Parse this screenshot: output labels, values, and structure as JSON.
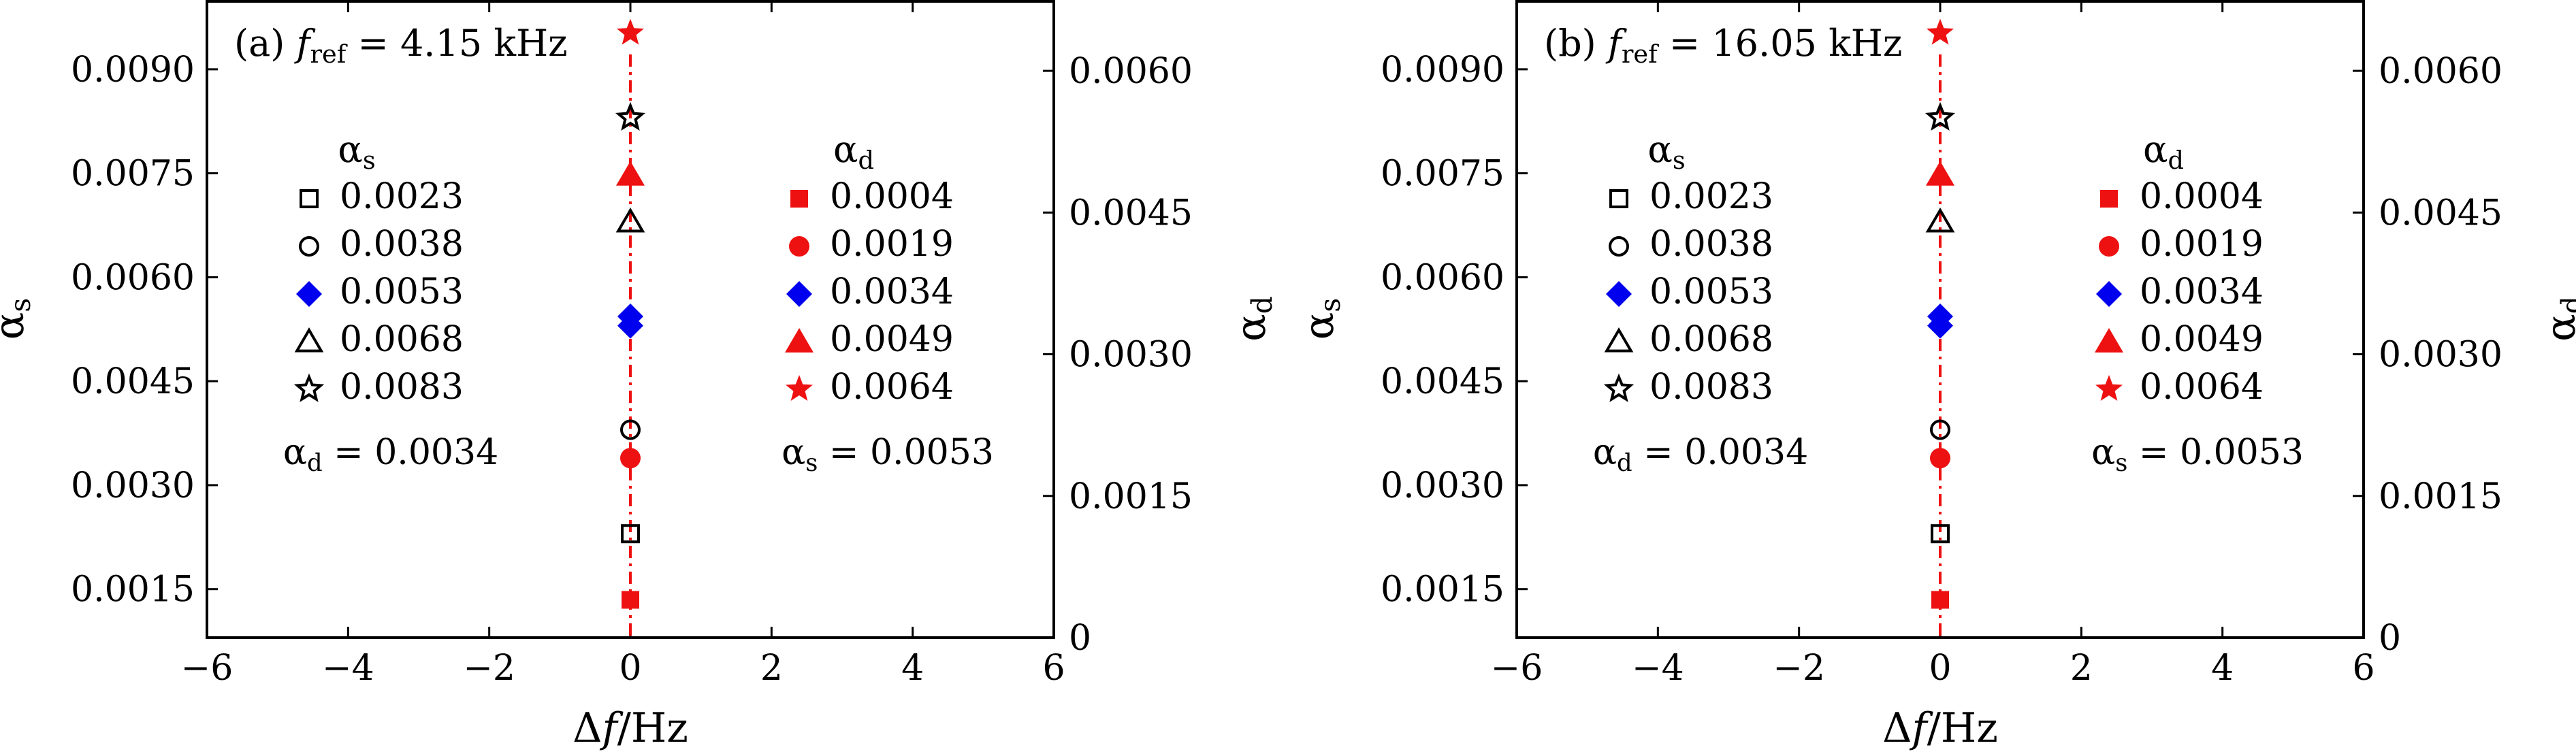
{
  "chart_data": [
    {
      "type": "scatter",
      "panel_label": "(a)",
      "title_prefix": "f",
      "title_sub": "ref",
      "title_value": " = 4.15 kHz",
      "xlabel": "Δf/Hz",
      "ylabel_left": "α",
      "ylabel_left_sub": "s",
      "ylabel_right": "α",
      "ylabel_right_sub": "d",
      "xlim": [
        -6,
        6
      ],
      "ylim_left": [
        0.0008,
        0.01
      ],
      "ylim_right": [
        0,
        0.00675
      ],
      "xticks": [
        -6,
        -4,
        -2,
        0,
        2,
        4,
        6
      ],
      "xtick_labels": [
        "−6",
        "−4",
        "−2",
        "0",
        "2",
        "4",
        "6"
      ],
      "yticks_left": [
        0.0015,
        0.003,
        0.0045,
        0.006,
        0.0075,
        0.009
      ],
      "ytick_labels_left": [
        "0.0015",
        "0.0030",
        "0.0045",
        "0.0060",
        "0.0075",
        "0.0090"
      ],
      "yticks_right": [
        0,
        0.0015,
        0.003,
        0.0045,
        0.006
      ],
      "ytick_labels_right": [
        "0",
        "0.0015",
        "0.0030",
        "0.0045",
        "0.0060"
      ],
      "legend_left_title": "α",
      "legend_left_title_sub": "s",
      "legend_left_footer": "α",
      "legend_left_footer_sub": "d",
      "legend_left_footer_value": " = 0.0034",
      "legend_right_title": "α",
      "legend_right_title_sub": "d",
      "legend_right_footer": "α",
      "legend_right_footer_sub": "s",
      "legend_right_footer_value": " = 0.0053",
      "series_left": [
        {
          "name": "0.0023",
          "marker": "square-open",
          "color": "#000000",
          "x": 0,
          "y": 0.0023
        },
        {
          "name": "0.0038",
          "marker": "circle-open",
          "color": "#000000",
          "x": 0,
          "y": 0.0038
        },
        {
          "name": "0.0053",
          "marker": "diamond-filled",
          "color": "#0000ee",
          "x": 0,
          "y": 0.0053
        },
        {
          "name": "0.0068",
          "marker": "triangle-open",
          "color": "#000000",
          "x": 0,
          "y": 0.0068
        },
        {
          "name": "0.0083",
          "marker": "star-open",
          "color": "#000000",
          "x": 0,
          "y": 0.0083
        }
      ],
      "series_right": [
        {
          "name": "0.0004",
          "marker": "square-filled",
          "color": "#ee1111",
          "x": 0,
          "y": 0.0004
        },
        {
          "name": "0.0019",
          "marker": "circle-filled",
          "color": "#ee1111",
          "x": 0,
          "y": 0.0019
        },
        {
          "name": "0.0034",
          "marker": "diamond-filled",
          "color": "#0000ee",
          "x": 0,
          "y": 0.0034
        },
        {
          "name": "0.0049",
          "marker": "triangle-filled",
          "color": "#ee1111",
          "x": 0,
          "y": 0.0049
        },
        {
          "name": "0.0064",
          "marker": "star-filled",
          "color": "#ee1111",
          "x": 0,
          "y": 0.0064
        }
      ],
      "line_color": "#ee1111"
    },
    {
      "type": "scatter",
      "panel_label": "(b)",
      "title_prefix": "f",
      "title_sub": "ref",
      "title_value": " = 16.05 kHz",
      "xlabel": "Δf/Hz",
      "ylabel_left": "α",
      "ylabel_left_sub": "s",
      "ylabel_right": "α",
      "ylabel_right_sub": "d",
      "xlim": [
        -6,
        6
      ],
      "ylim_left": [
        0.0008,
        0.01
      ],
      "ylim_right": [
        0,
        0.00675
      ],
      "xticks": [
        -6,
        -4,
        -2,
        0,
        2,
        4,
        6
      ],
      "xtick_labels": [
        "−6",
        "−4",
        "−2",
        "0",
        "2",
        "4",
        "6"
      ],
      "yticks_left": [
        0.0015,
        0.003,
        0.0045,
        0.006,
        0.0075,
        0.009
      ],
      "ytick_labels_left": [
        "0.0015",
        "0.0030",
        "0.0045",
        "0.0060",
        "0.0075",
        "0.0090"
      ],
      "yticks_right": [
        0,
        0.0015,
        0.003,
        0.0045,
        0.006
      ],
      "ytick_labels_right": [
        "0",
        "0.0015",
        "0.0030",
        "0.0045",
        "0.0060"
      ],
      "legend_left_title": "α",
      "legend_left_title_sub": "s",
      "legend_left_footer": "α",
      "legend_left_footer_sub": "d",
      "legend_left_footer_value": " = 0.0034",
      "legend_right_title": "α",
      "legend_right_title_sub": "d",
      "legend_right_footer": "α",
      "legend_right_footer_sub": "s",
      "legend_right_footer_value": " = 0.0053",
      "series_left": [
        {
          "name": "0.0023",
          "marker": "square-open",
          "color": "#000000",
          "x": 0,
          "y": 0.0023
        },
        {
          "name": "0.0038",
          "marker": "circle-open",
          "color": "#000000",
          "x": 0,
          "y": 0.0038
        },
        {
          "name": "0.0053",
          "marker": "diamond-filled",
          "color": "#0000ee",
          "x": 0,
          "y": 0.0053
        },
        {
          "name": "0.0068",
          "marker": "triangle-open",
          "color": "#000000",
          "x": 0,
          "y": 0.0068
        },
        {
          "name": "0.0083",
          "marker": "star-open",
          "color": "#000000",
          "x": 0,
          "y": 0.0083
        }
      ],
      "series_right": [
        {
          "name": "0.0004",
          "marker": "square-filled",
          "color": "#ee1111",
          "x": 0,
          "y": 0.0004
        },
        {
          "name": "0.0019",
          "marker": "circle-filled",
          "color": "#ee1111",
          "x": 0,
          "y": 0.0019
        },
        {
          "name": "0.0034",
          "marker": "diamond-filled",
          "color": "#0000ee",
          "x": 0,
          "y": 0.0034
        },
        {
          "name": "0.0049",
          "marker": "triangle-filled",
          "color": "#ee1111",
          "x": 0,
          "y": 0.0049
        },
        {
          "name": "0.0064",
          "marker": "star-filled",
          "color": "#ee1111",
          "x": 0,
          "y": 0.0064
        }
      ],
      "line_color": "#ee1111"
    }
  ]
}
